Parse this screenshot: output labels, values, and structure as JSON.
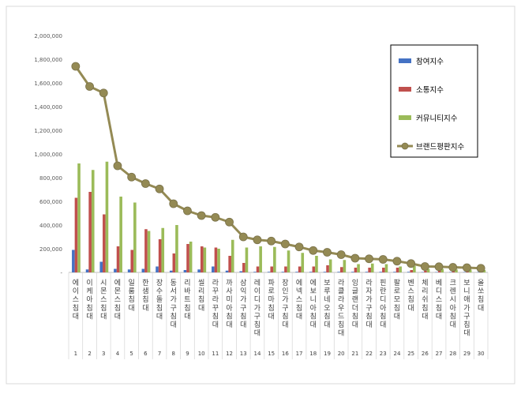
{
  "chart_data": {
    "type": "bar",
    "ylim": [
      0,
      2000000
    ],
    "y_ticks": [
      "2,000,000",
      "1,800,000",
      "1,600,000",
      "1,400,000",
      "1,200,000",
      "1,000,000",
      "800,000",
      "600,000",
      "400,000",
      "200,000",
      "-"
    ],
    "y_tick_values": [
      2000000,
      1800000,
      1600000,
      1400000,
      1200000,
      1000000,
      800000,
      600000,
      400000,
      200000,
      0
    ],
    "grid": false,
    "legend_position": "top-right",
    "ranks": [
      "1",
      "2",
      "3",
      "4",
      "5",
      "6",
      "7",
      "8",
      "9",
      "10",
      "11",
      "12",
      "13",
      "14",
      "15",
      "16",
      "17",
      "18",
      "19",
      "20",
      "21",
      "22",
      "23",
      "24",
      "25",
      "26",
      "27",
      "28",
      "29",
      "30"
    ],
    "categories": [
      "에이스침대",
      "이케아침대",
      "시몬스침대",
      "에몬스침대",
      "일룸침대",
      "한샘침대",
      "장수돌침대",
      "동서가구침대",
      "리바트침대",
      "씰리침대",
      "라꾸라꾸침대",
      "까사미아침대",
      "삼익가구침대",
      "레이디가구침대",
      "파로마침대",
      "장인가구침대",
      "에넥스침대",
      "에보니아침대",
      "보루네오침대",
      "라클라우드침대",
      "잉글랜더침대",
      "라자가구침대",
      "핀란디아침대",
      "팔로모침대",
      "벤스침대",
      "체리쉬침대",
      "베디스침대",
      "크렌시아침대",
      "보니애가구침대",
      "올쏘침대"
    ],
    "series": [
      {
        "name": "참여지수",
        "color": "#4472c4",
        "values": [
          190000,
          25000,
          90000,
          30000,
          25000,
          30000,
          50000,
          15000,
          20000,
          25000,
          50000,
          15000,
          10000,
          5000,
          5000,
          5000,
          5000,
          5000,
          5000,
          5000,
          5000,
          5000,
          5000,
          5000,
          5000,
          3000,
          3000,
          3000,
          3000,
          3000
        ]
      },
      {
        "name": "소통지수",
        "color": "#c0504d",
        "values": [
          630000,
          680000,
          490000,
          220000,
          190000,
          365000,
          280000,
          160000,
          240000,
          220000,
          210000,
          140000,
          80000,
          50000,
          50000,
          50000,
          50000,
          50000,
          60000,
          45000,
          40000,
          40000,
          40000,
          40000,
          20000,
          15000,
          15000,
          10000,
          10000,
          10000
        ]
      },
      {
        "name": "커뮤니티지수",
        "color": "#9bbb59",
        "values": [
          920000,
          865000,
          935000,
          640000,
          590000,
          350000,
          375000,
          400000,
          260000,
          210000,
          200000,
          275000,
          210000,
          220000,
          215000,
          185000,
          165000,
          140000,
          110000,
          105000,
          70000,
          75000,
          70000,
          50000,
          55000,
          30000,
          30000,
          25000,
          25000,
          20000
        ]
      },
      {
        "name": "브랜드평판지수",
        "color": "#948a54",
        "type": "line",
        "values": [
          1740000,
          1570000,
          1515000,
          900000,
          805000,
          750000,
          705000,
          580000,
          520000,
          480000,
          465000,
          425000,
          300000,
          275000,
          265000,
          240000,
          215000,
          185000,
          170000,
          150000,
          120000,
          115000,
          110000,
          95000,
          75000,
          50000,
          48000,
          43000,
          40000,
          35000
        ]
      }
    ]
  }
}
